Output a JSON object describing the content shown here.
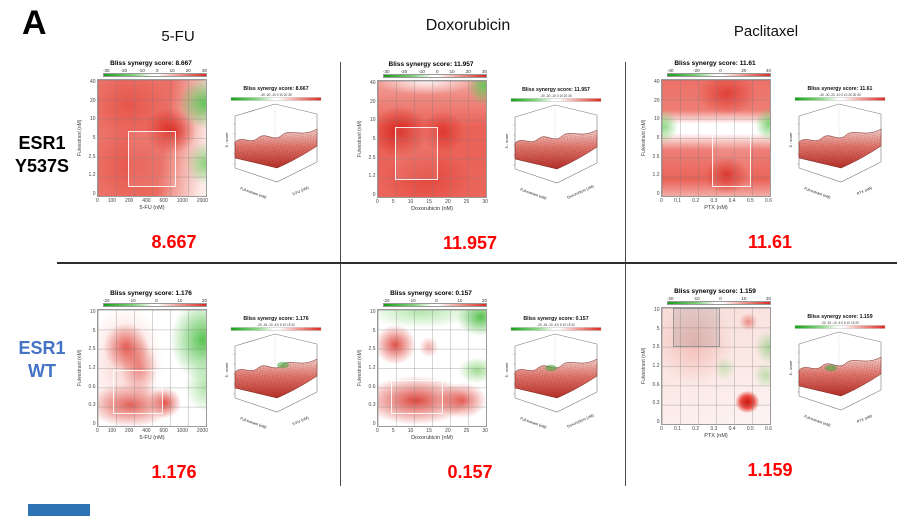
{
  "figure": {
    "panel_label": "A",
    "column_headers": [
      "5-FU",
      "Doxorubicin",
      "Paclitaxel"
    ],
    "row_labels": [
      {
        "line1": "ESR1",
        "line2": "Y537S",
        "color": "#000000"
      },
      {
        "line1": "ESR1",
        "line2": "WT",
        "color": "#4472c4"
      }
    ],
    "colors": {
      "synergy_red": "#dc2a21",
      "antagonism_green": "#14a214",
      "score_text_red": "#ff0000",
      "wt_label_blue": "#4472c4"
    }
  },
  "panels": [
    {
      "id": "y537s-5fu",
      "title": "Bliss synergy score: 8.667",
      "score": "8.667",
      "plot2d": {
        "xlabel": "5-FU (nM)",
        "ylabel": "Fulvestrant (nM)",
        "x_ticks": [
          "0",
          "100",
          "200",
          "400",
          "600",
          "1000",
          "2000"
        ],
        "y_ticks": [
          "40",
          "20",
          "10",
          "5",
          "2.5",
          "1.2",
          "0"
        ],
        "colorbar_ticks": [
          "-30",
          "-20",
          "-10",
          "0",
          "10",
          "20",
          "30"
        ]
      },
      "plot3d": {
        "title": "Bliss synergy score: 8.667",
        "xlabel": "5-FU (nM)",
        "ylabel": "Fulvestrant (nM)",
        "zlabel": "δ - score",
        "colorbar_ticks": [
          "-30",
          "-20",
          "-10",
          "0",
          "10",
          "20",
          "30"
        ]
      }
    },
    {
      "id": "y537s-doxorubicin",
      "title": "Bliss synergy score: 11.957",
      "score": "11.957",
      "plot2d": {
        "xlabel": "Doxorubicin (nM)",
        "ylabel": "Fulvestrant (nM)",
        "x_ticks": [
          "0",
          "5",
          "10",
          "15",
          "20",
          "25",
          "30"
        ],
        "y_ticks": [
          "40",
          "20",
          "10",
          "5",
          "2.5",
          "1.2",
          "0"
        ],
        "colorbar_ticks": [
          "-30",
          "-20",
          "-10",
          "0",
          "10",
          "20",
          "30"
        ]
      },
      "plot3d": {
        "title": "Bliss synergy score: 11.957",
        "xlabel": "Doxorubicin (nM)",
        "ylabel": "Fulvestrant (nM)",
        "zlabel": "δ - score",
        "colorbar_ticks": [
          "-30",
          "-20",
          "-10",
          "0",
          "10",
          "20",
          "30"
        ]
      }
    },
    {
      "id": "y537s-paclitaxel",
      "title": "Bliss synergy score: 11.61",
      "score": "11.61",
      "plot2d": {
        "xlabel": "PTX (nM)",
        "ylabel": "Fulvestrant (nM)",
        "x_ticks": [
          "0",
          "0.1",
          "0.2",
          "0.3",
          "0.4",
          "0.5",
          "0.6"
        ],
        "y_ticks": [
          "40",
          "20",
          "10",
          "5",
          "2.5",
          "1.2",
          "0"
        ],
        "colorbar_ticks": [
          "-40",
          "-20",
          "0",
          "20",
          "40"
        ]
      },
      "plot3d": {
        "title": "Bliss synergy score: 11.61",
        "xlabel": "PTX (nM)",
        "ylabel": "Fulvestrant (nM)",
        "zlabel": "δ - score",
        "colorbar_ticks": [
          "-40",
          "-30",
          "-20",
          "-10",
          "0",
          "10",
          "20",
          "30",
          "40"
        ]
      }
    },
    {
      "id": "wt-5fu",
      "title": "Bliss synergy score: 1.176",
      "score": "1.176",
      "plot2d": {
        "xlabel": "5-FU (nM)",
        "ylabel": "Fulvestrant (nM)",
        "x_ticks": [
          "0",
          "100",
          "200",
          "400",
          "600",
          "1000",
          "2000"
        ],
        "y_ticks": [
          "10",
          "5",
          "2.5",
          "1.2",
          "0.6",
          "0.3",
          "0"
        ],
        "colorbar_ticks": [
          "-20",
          "-10",
          "0",
          "10",
          "20"
        ]
      },
      "plot3d": {
        "title": "Bliss synergy score: 1.176",
        "xlabel": "5-FU (nM)",
        "ylabel": "Fulvestrant (nM)",
        "zlabel": "δ - score",
        "colorbar_ticks": [
          "-20",
          "-15",
          "-10",
          "-5",
          "0",
          "5",
          "10",
          "15",
          "20"
        ]
      }
    },
    {
      "id": "wt-doxorubicin",
      "title": "Bliss synergy score: 0.157",
      "score": "0.157",
      "plot2d": {
        "xlabel": "Doxorubicin (nM)",
        "ylabel": "Fulvestrant (nM)",
        "x_ticks": [
          "0",
          "5",
          "10",
          "15",
          "20",
          "25",
          "30"
        ],
        "y_ticks": [
          "10",
          "5",
          "2.5",
          "1.2",
          "0.6",
          "0.3",
          "0"
        ],
        "colorbar_ticks": [
          "-20",
          "-10",
          "0",
          "10",
          "20"
        ]
      },
      "plot3d": {
        "title": "Bliss synergy score: 0.157",
        "xlabel": "Doxorubicin (nM)",
        "ylabel": "Fulvestrant (nM)",
        "zlabel": "δ - score",
        "colorbar_ticks": [
          "-20",
          "-15",
          "-10",
          "-5",
          "0",
          "5",
          "10",
          "15",
          "20"
        ]
      }
    },
    {
      "id": "wt-paclitaxel",
      "title": "Bliss synergy score: 1.159",
      "score": "1.159",
      "plot2d": {
        "xlabel": "PTX (nM)",
        "ylabel": "Fulvestrant (nM)",
        "x_ticks": [
          "0",
          "0.1",
          "0.2",
          "0.3",
          "0.4",
          "0.5",
          "0.6"
        ],
        "y_ticks": [
          "10",
          "5",
          "2.5",
          "1.2",
          "0.6",
          "0.3",
          "0"
        ],
        "colorbar_ticks": [
          "-20",
          "-10",
          "0",
          "10",
          "20"
        ]
      },
      "plot3d": {
        "title": "Bliss synergy score: 1.159",
        "xlabel": "PTX (nM)",
        "ylabel": "Fulvestrant (nM)",
        "zlabel": "δ - score",
        "colorbar_ticks": [
          "-20",
          "-15",
          "-10",
          "-5",
          "0",
          "5",
          "10",
          "15",
          "20"
        ]
      }
    }
  ],
  "chart_data": [
    {
      "type": "heatmap",
      "cell_line": "ESR1 Y537S",
      "drug": "5-FU",
      "title": "Bliss synergy score: 8.667",
      "bliss_synergy_score": 8.667,
      "x_label": "5-FU (nM)",
      "x_ticks": [
        0,
        100,
        200,
        400,
        600,
        1000,
        2000
      ],
      "y_label": "Fulvestrant (nM)",
      "y_ticks": [
        0,
        1.2,
        2.5,
        5,
        10,
        20,
        40
      ],
      "colorbar_range": [
        -30,
        30
      ],
      "pattern": "synergy (red) across most of the dose matrix; antagonism (green) at highest 5-FU doses",
      "has_3d_surface": true
    },
    {
      "type": "heatmap",
      "cell_line": "ESR1 Y537S",
      "drug": "Doxorubicin",
      "title": "Bliss synergy score: 11.957",
      "bliss_synergy_score": 11.957,
      "x_label": "Doxorubicin (nM)",
      "x_ticks": [
        0,
        5,
        10,
        15,
        20,
        25,
        30
      ],
      "y_label": "Fulvestrant (nM)",
      "y_ticks": [
        0,
        1.2,
        2.5,
        5,
        10,
        20,
        40
      ],
      "colorbar_range": [
        -30,
        30
      ],
      "pattern": "strong synergy (red) throughout; antagonism (green) only at the top-right high-dose corner",
      "has_3d_surface": true
    },
    {
      "type": "heatmap",
      "cell_line": "ESR1 Y537S",
      "drug": "Paclitaxel",
      "title": "Bliss synergy score: 11.61",
      "bliss_synergy_score": 11.61,
      "x_label": "PTX (nM)",
      "x_ticks": [
        0,
        0.1,
        0.2,
        0.3,
        0.4,
        0.5,
        0.6
      ],
      "y_label": "Fulvestrant (nM)",
      "y_ticks": [
        0,
        1.2,
        2.5,
        5,
        10,
        20,
        40
      ],
      "colorbar_range": [
        -40,
        40
      ],
      "pattern": "synergy bands at high and low fulvestrant with an additive/antagonistic band near 10 nM fulvestrant",
      "has_3d_surface": true
    },
    {
      "type": "heatmap",
      "cell_line": "ESR1 WT",
      "drug": "5-FU",
      "title": "Bliss synergy score: 1.176",
      "bliss_synergy_score": 1.176,
      "x_label": "5-FU (nM)",
      "x_ticks": [
        0,
        100,
        200,
        400,
        600,
        1000,
        2000
      ],
      "y_label": "Fulvestrant (nM)",
      "y_ticks": [
        0,
        0.3,
        0.6,
        1.2,
        2.5,
        5,
        10
      ],
      "colorbar_range": [
        -20,
        20
      ],
      "pattern": "weak synergy (red) at low/mid doses; antagonism (green) at high 5-FU doses",
      "has_3d_surface": true
    },
    {
      "type": "heatmap",
      "cell_line": "ESR1 WT",
      "drug": "Doxorubicin",
      "title": "Bliss synergy score: 0.157",
      "bliss_synergy_score": 0.157,
      "x_label": "Doxorubicin (nM)",
      "x_ticks": [
        0,
        5,
        10,
        15,
        20,
        25,
        30
      ],
      "y_label": "Fulvestrant (nM)",
      "y_ticks": [
        0,
        0.3,
        0.6,
        1.2,
        2.5,
        5,
        10
      ],
      "colorbar_range": [
        -20,
        20
      ],
      "pattern": "synergy (red) at low fulvestrant; antagonism (green) at high fulvestrant and high doxorubicin",
      "has_3d_surface": true
    },
    {
      "type": "heatmap",
      "cell_line": "ESR1 WT",
      "drug": "Paclitaxel",
      "title": "Bliss synergy score: 1.159",
      "bliss_synergy_score": 1.159,
      "x_label": "PTX (nM)",
      "x_ticks": [
        0,
        0.1,
        0.2,
        0.3,
        0.4,
        0.5,
        0.6
      ],
      "y_label": "Fulvestrant (nM)",
      "y_ticks": [
        0,
        0.3,
        0.6,
        1.2,
        2.5,
        5,
        10
      ],
      "colorbar_range": [
        -20,
        20
      ],
      "pattern": "mostly additive (pale) with a strong synergy hotspot near PTX 0.5 nM + fulvestrant 0.3 nM and scattered antagonism",
      "has_3d_surface": true
    }
  ]
}
